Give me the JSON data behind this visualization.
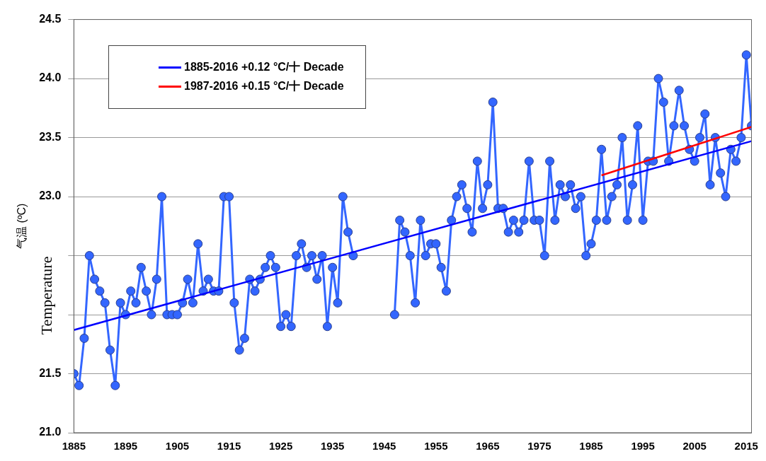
{
  "chart_data": {
    "type": "line",
    "ylabel": "气温 (ºC)",
    "annotations": [
      "Temperature"
    ],
    "xlim": [
      1885,
      2016
    ],
    "xticks": [
      1885,
      1895,
      1905,
      1915,
      1925,
      1935,
      1945,
      1955,
      1965,
      1975,
      1985,
      1995,
      2005,
      2015
    ],
    "ylim": [
      21,
      24.5
    ],
    "yticks": [
      {
        "value": 21,
        "label": "21.0"
      },
      {
        "value": 21.5,
        "label": "21.5"
      },
      {
        "value": 22,
        "label": null
      },
      {
        "value": 22.5,
        "label": null
      },
      {
        "value": 23,
        "label": "23.0"
      },
      {
        "value": 23.5,
        "label": "23.5"
      },
      {
        "value": 24,
        "label": "24.0"
      },
      {
        "value": 24.5,
        "label": "24.5"
      }
    ],
    "grid": "y",
    "legend": "top left",
    "marker": "circle",
    "line_style": "solid",
    "series": [
      {
        "color": "#3366ff",
        "x": [
          1885,
          1886,
          1887,
          1888,
          1889,
          1890,
          1891,
          1892,
          1893,
          1894,
          1895,
          1896,
          1897,
          1898,
          1899,
          1900,
          1901,
          1902,
          1903,
          1904,
          1905,
          1906,
          1907,
          1908,
          1909,
          1910,
          1911,
          1912,
          1913,
          1914,
          1915,
          1916,
          1917,
          1918,
          1919,
          1920,
          1921,
          1922,
          1923,
          1924,
          1925,
          1926,
          1927,
          1928,
          1929,
          1930,
          1931,
          1932,
          1933,
          1934,
          1935,
          1936,
          1937,
          1938,
          1939,
          1940,
          1941,
          1942,
          1943,
          1944,
          1945,
          1946,
          1947,
          1948,
          1949,
          1950,
          1951,
          1952,
          1953,
          1954,
          1955,
          1956,
          1957,
          1958,
          1959,
          1960,
          1961,
          1962,
          1963,
          1964,
          1965,
          1966,
          1967,
          1968,
          1969,
          1970,
          1971,
          1972,
          1973,
          1974,
          1975,
          1976,
          1977,
          1978,
          1979,
          1980,
          1981,
          1982,
          1983,
          1984,
          1985,
          1986,
          1987,
          1988,
          1989,
          1990,
          1991,
          1992,
          1993,
          1994,
          1995,
          1996,
          1997,
          1998,
          1999,
          2000,
          2001,
          2002,
          2003,
          2004,
          2005,
          2006,
          2007,
          2008,
          2009,
          2010,
          2011,
          2012,
          2013,
          2014,
          2015,
          2016
        ],
        "values": [
          21.5,
          21.4,
          21.8,
          22.5,
          22.3,
          22.2,
          22.1,
          21.7,
          21.4,
          22.1,
          22.0,
          22.2,
          22.1,
          22.4,
          22.2,
          22.0,
          22.3,
          23.0,
          22.0,
          22.0,
          22.0,
          22.1,
          22.3,
          22.1,
          22.6,
          22.2,
          22.3,
          22.2,
          22.2,
          23.0,
          23.0,
          22.1,
          21.7,
          21.8,
          22.3,
          22.2,
          22.3,
          22.4,
          22.5,
          22.4,
          21.9,
          22.0,
          21.9,
          22.5,
          22.6,
          22.4,
          22.5,
          22.3,
          22.5,
          21.9,
          22.4,
          22.1,
          23.0,
          22.7,
          22.5,
          null,
          null,
          null,
          null,
          null,
          null,
          null,
          22.0,
          22.8,
          22.7,
          22.5,
          22.1,
          22.8,
          22.5,
          22.6,
          22.6,
          22.4,
          22.2,
          22.8,
          23.0,
          23.1,
          22.9,
          22.7,
          23.3,
          22.9,
          23.1,
          23.8,
          22.9,
          22.9,
          22.7,
          22.8,
          22.7,
          22.8,
          23.3,
          22.8,
          22.8,
          22.5,
          23.3,
          22.8,
          23.1,
          23.0,
          23.1,
          22.9,
          23.0,
          22.5,
          22.6,
          22.8,
          23.4,
          22.8,
          23.0,
          23.1,
          23.5,
          22.8,
          23.1,
          23.6,
          22.8,
          23.3,
          23.3,
          24.0,
          23.8,
          23.3,
          23.6,
          23.9,
          23.6,
          23.4,
          23.3,
          23.5,
          23.7,
          23.1,
          23.5,
          23.2,
          23.0,
          23.4,
          23.3,
          23.5,
          24.2,
          23.6
        ]
      },
      {
        "name": "1885-2016 +0.12 °C/十 Decade",
        "color": "#0000ff",
        "marker": "none",
        "x": [
          1885,
          2016
        ],
        "values": [
          21.87,
          23.47
        ]
      },
      {
        "name": "1987-2016 +0.15 °C/十 Decade",
        "color": "#ff0000",
        "marker": "none",
        "x": [
          1987,
          2016
        ],
        "values": [
          23.18,
          23.59
        ]
      }
    ]
  }
}
